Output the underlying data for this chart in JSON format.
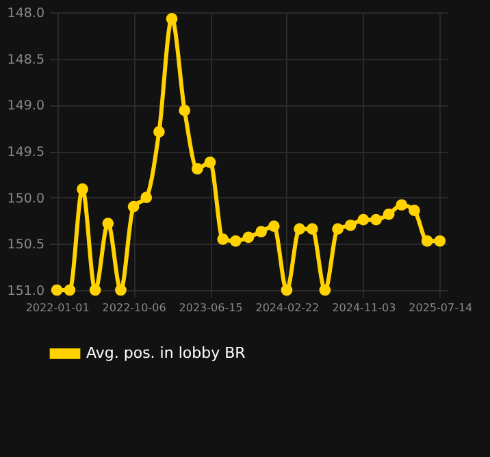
{
  "chart_data": {
    "type": "line",
    "categories": [
      "2022-01-01",
      null,
      null,
      null,
      null,
      null,
      "2022-10-06",
      null,
      null,
      null,
      null,
      null,
      "2023-06-15",
      null,
      null,
      null,
      null,
      null,
      "2024-02-22",
      null,
      null,
      null,
      null,
      null,
      "2024-11-03",
      null,
      null,
      null,
      null,
      null,
      "2025-07-14"
    ],
    "series": [
      {
        "name": "Avg. pos. in lobby BR",
        "color": "#ffd200",
        "values": [
          151.0,
          151.0,
          149.91,
          151.0,
          150.28,
          151.0,
          150.1,
          150.0,
          149.29,
          148.07,
          149.06,
          149.69,
          149.62,
          150.45,
          150.47,
          150.43,
          150.37,
          150.31,
          151.0,
          150.34,
          150.34,
          151.0,
          150.34,
          150.3,
          150.24,
          150.24,
          150.18,
          150.08,
          150.14,
          150.47,
          150.47
        ]
      }
    ],
    "ylim": [
      151.0,
      148.0
    ],
    "yticks": [
      {
        "value": 148,
        "label": "148.0"
      },
      148.5,
      {
        "value": 149,
        "label": "149.0"
      },
      149.5,
      {
        "value": 150,
        "label": "150.0"
      },
      150.5,
      {
        "value": 151,
        "label": "151.0"
      }
    ],
    "grid": true,
    "legend": "bottom",
    "marker": "circle",
    "line_style": "solid"
  }
}
